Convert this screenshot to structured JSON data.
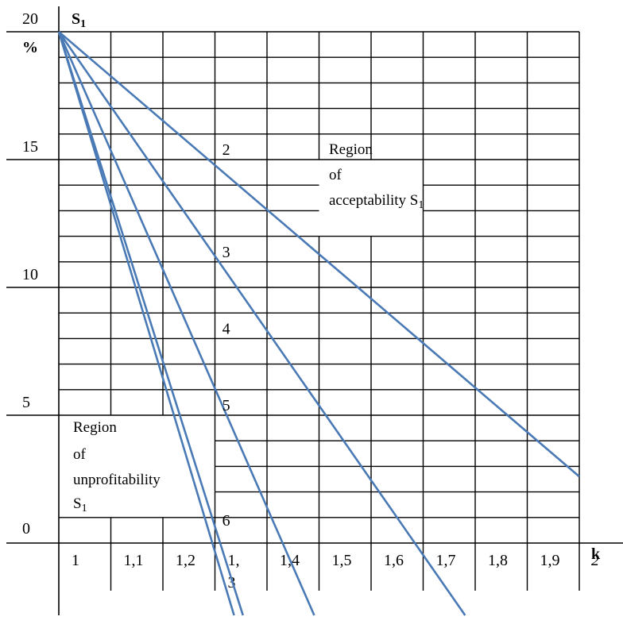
{
  "chart_data": {
    "type": "line",
    "ylabel": "S",
    "ylabel_sub": "1",
    "ylabel_unit": "%",
    "xlabel": "k",
    "ylim": [
      0,
      20
    ],
    "xlim": [
      1,
      2
    ],
    "y_ticks": [
      "0",
      "5",
      "10",
      "15",
      "20"
    ],
    "x_ticks": [
      "1",
      "1,1",
      "1,2",
      "1,",
      "1,4",
      "1,5",
      "1,6",
      "1,7",
      "1,8",
      "1,9",
      "2"
    ],
    "x_tick_extra": "3",
    "series": [
      {
        "name": "2",
        "points": [
          [
            1,
            20
          ],
          [
            2,
            2.6
          ]
        ]
      },
      {
        "name": "3",
        "points": [
          [
            1,
            20
          ],
          [
            1.684,
            0
          ]
        ]
      },
      {
        "name": "4",
        "points": [
          [
            1,
            20
          ],
          [
            1.43,
            0
          ]
        ]
      },
      {
        "name": "5",
        "points": [
          [
            1,
            20
          ],
          [
            1.31,
            0
          ]
        ]
      },
      {
        "name": "6",
        "points": [
          [
            1,
            20
          ],
          [
            1.295,
            0
          ]
        ]
      }
    ],
    "line_labels": [
      {
        "text": "2",
        "x": 1.32,
        "y": 15
      },
      {
        "text": "3",
        "x": 1.32,
        "y": 11
      },
      {
        "text": "4",
        "x": 1.32,
        "y": 8
      },
      {
        "text": "5",
        "x": 1.32,
        "y": 5
      },
      {
        "text": "6",
        "x": 1.32,
        "y": 0.5
      }
    ],
    "region_acceptability": [
      "Region",
      "of",
      "acceptability S"
    ],
    "region_acceptability_sub": "1",
    "region_unprofitability": [
      "Region",
      "of",
      "unprofitability",
      "S"
    ],
    "region_unprofitability_sub": "1"
  }
}
